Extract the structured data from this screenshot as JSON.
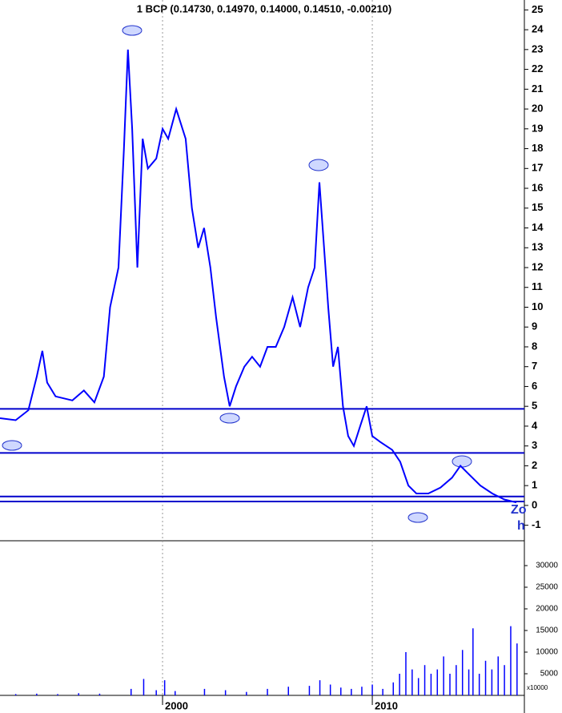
{
  "chart_data": [
    {
      "type": "line",
      "title": "1 BCP (0.14730, 0.14970, 0.14000, 0.14510, -0.00210)",
      "x": [
        1992.25,
        1993.0,
        1993.6,
        1994.0,
        1994.27,
        1994.5,
        1994.9,
        1995.7,
        1996.25,
        1996.75,
        1997.2,
        1997.5,
        1997.9,
        1998.16,
        1998.35,
        1998.55,
        1998.8,
        1999.05,
        1999.3,
        1999.7,
        2000.0,
        2000.27,
        2000.65,
        2001.1,
        2001.4,
        2001.7,
        2001.98,
        2002.28,
        2002.55,
        2002.93,
        2003.2,
        2003.5,
        2003.9,
        2004.27,
        2004.65,
        2005.0,
        2005.4,
        2005.8,
        2006.2,
        2006.56,
        2006.94,
        2007.25,
        2007.48,
        2007.7,
        2007.9,
        2008.13,
        2008.36,
        2008.6,
        2008.85,
        2009.12,
        2009.42,
        2009.73,
        2010.0,
        2010.38,
        2010.95,
        2011.33,
        2011.72,
        2012.1,
        2012.67,
        2013.25,
        2013.8,
        2014.2,
        2014.58,
        2015.15,
        2015.72,
        2016.3,
        2016.87
      ],
      "values": [
        4.4,
        4.3,
        4.8,
        6.5,
        7.8,
        6.2,
        5.5,
        5.3,
        5.8,
        5.2,
        6.5,
        10,
        12,
        18,
        23,
        19,
        12,
        18.5,
        17,
        17.5,
        19,
        18.5,
        20,
        18.5,
        15,
        13,
        14,
        12,
        9.5,
        6.5,
        5,
        6,
        7,
        7.5,
        7,
        8,
        8,
        9,
        10.5,
        9,
        11,
        12,
        16.3,
        13,
        10,
        7,
        8,
        5,
        3.5,
        3,
        4,
        5,
        3.5,
        3.2,
        2.8,
        2.2,
        1,
        0.6,
        0.6,
        0.9,
        1.4,
        2,
        1.6,
        1,
        0.6,
        0.3,
        0.15
      ],
      "color": "#0000ff",
      "hlines": [
        4.87,
        2.65,
        0.45,
        0.2
      ],
      "xlim": [
        1992.25,
        2017.25
      ],
      "xticks": [
        2000,
        2010
      ],
      "ylim": [
        -1.5,
        25.5
      ],
      "yticks": [
        -1,
        0,
        1,
        2,
        3,
        4,
        5,
        6,
        7,
        8,
        9,
        10,
        11,
        12,
        13,
        14,
        15,
        16,
        17,
        18,
        19,
        20,
        21,
        22,
        23,
        24,
        25
      ],
      "annotations": [
        "Zo",
        "h"
      ]
    },
    {
      "type": "bar",
      "x": [
        1993,
        1994,
        1995,
        1996,
        1997,
        1998.5,
        1999.1,
        1999.7,
        2000.1,
        2000.6,
        2002,
        2003,
        2004,
        2005,
        2006,
        2007,
        2007.5,
        2008,
        2008.5,
        2009,
        2009.5,
        2010,
        2010.5,
        2011,
        2011.3,
        2011.6,
        2011.9,
        2012.2,
        2012.5,
        2012.8,
        2013.1,
        2013.4,
        2013.7,
        2014.0,
        2014.3,
        2014.6,
        2014.8,
        2015.1,
        2015.4,
        2015.7,
        2016.0,
        2016.3,
        2016.6,
        2016.9
      ],
      "values": [
        300,
        400,
        300,
        500,
        400,
        1500,
        3800,
        1200,
        3500,
        1000,
        1500,
        1200,
        800,
        1500,
        2000,
        2200,
        3500,
        2500,
        1800,
        1500,
        2000,
        2500,
        1500,
        3000,
        5000,
        10000,
        6000,
        4000,
        7000,
        5000,
        6000,
        9000,
        5000,
        7000,
        10500,
        6000,
        15500,
        5000,
        8000,
        6000,
        9000,
        7000,
        16000,
        12000
      ],
      "color": "#0000ff",
      "xlim": [
        1992.25,
        2017.25
      ],
      "ylim": [
        0,
        35000
      ],
      "yticks": [
        5000,
        10000,
        15000,
        20000,
        25000,
        30000
      ],
      "unit_label": "x10000"
    }
  ]
}
